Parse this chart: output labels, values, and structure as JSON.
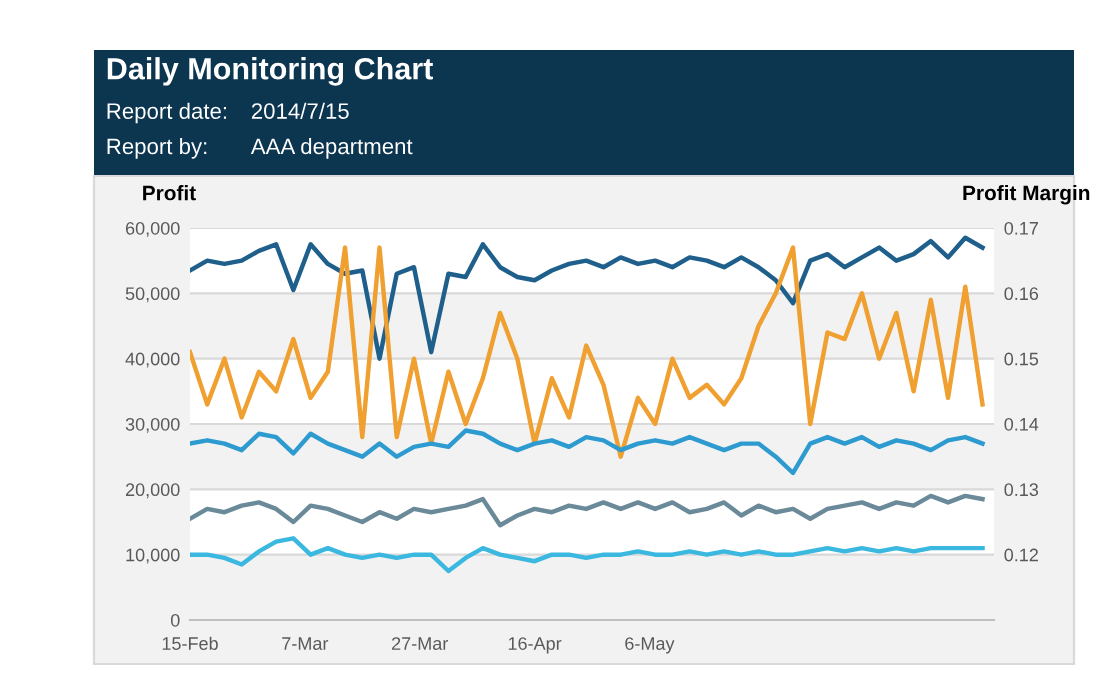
{
  "chart_data": {
    "type": "line",
    "title": "Daily Monitoring Chart",
    "annotations": [
      "Report date:",
      "2014/7/15",
      "Report by:",
      "AAA department"
    ],
    "ylabel": "Profit",
    "y2label": "Profit Margin",
    "x": [
      "2014-02-15",
      "2014-02-18",
      "2014-02-21",
      "2014-02-24",
      "2014-02-27",
      "2014-03-02",
      "2014-03-05",
      "2014-03-08",
      "2014-03-11",
      "2014-03-14",
      "2014-03-17",
      "2014-03-20",
      "2014-03-23",
      "2014-03-26",
      "2014-03-29",
      "2014-04-01",
      "2014-04-04",
      "2014-04-07",
      "2014-04-10",
      "2014-04-13",
      "2014-04-16",
      "2014-04-19",
      "2014-04-22",
      "2014-04-25",
      "2014-04-28",
      "2014-05-01",
      "2014-05-04",
      "2014-05-07",
      "2014-05-10",
      "2014-05-13",
      "2014-05-16",
      "2014-05-19",
      "2014-05-22",
      "2014-05-25",
      "2014-05-28",
      "2014-05-31",
      "2014-06-03",
      "2014-06-06",
      "2014-06-09",
      "2014-06-12",
      "2014-06-15",
      "2014-06-18",
      "2014-06-21",
      "2014-06-24",
      "2014-06-27",
      "2014-06-30",
      "2014-07-03"
    ],
    "series": [
      {
        "color": "#1f5f8b",
        "values": [
          53500,
          55000,
          54500,
          55000,
          56500,
          57500,
          50500,
          57500,
          54500,
          53000,
          53500,
          40000,
          53000,
          54000,
          41000,
          53000,
          52500,
          57500,
          54000,
          52500,
          52000,
          53500,
          54500,
          55000,
          54000,
          55500,
          54500,
          55000,
          54000,
          55500,
          55000,
          54000,
          55500,
          54000,
          52000,
          48500,
          55000,
          56000,
          54000,
          55500,
          57000,
          55000,
          56000,
          58000,
          55500,
          58500,
          57000
        ]
      },
      {
        "color": "#f0a030",
        "values": [
          41000,
          33000,
          40000,
          31000,
          38000,
          35000,
          43000,
          34000,
          38000,
          57000,
          28000,
          57000,
          28000,
          40000,
          27000,
          38000,
          30000,
          37000,
          47000,
          40000,
          27000,
          37000,
          31000,
          42000,
          36000,
          25000,
          34000,
          30000,
          40000,
          34000,
          36000,
          33000,
          37000,
          45000,
          50000,
          57000,
          30000,
          44000,
          43000,
          50000,
          40000,
          47000,
          35000,
          49000,
          34000,
          51000,
          33000
        ]
      },
      {
        "color": "#2e9bd0",
        "values": [
          27000,
          27500,
          27000,
          26000,
          28500,
          28000,
          25500,
          28500,
          27000,
          26000,
          25000,
          27000,
          25000,
          26500,
          27000,
          26500,
          29000,
          28500,
          27000,
          26000,
          27000,
          27500,
          26500,
          28000,
          27500,
          26000,
          27000,
          27500,
          27000,
          28000,
          27000,
          26000,
          27000,
          27000,
          25000,
          22500,
          27000,
          28000,
          27000,
          28000,
          26500,
          27500,
          27000,
          26000,
          27500,
          28000,
          27000
        ]
      },
      {
        "color": "#6a8a9a",
        "values": [
          15500,
          17000,
          16500,
          17500,
          18000,
          17000,
          15000,
          17500,
          17000,
          16000,
          15000,
          16500,
          15500,
          17000,
          16500,
          17000,
          17500,
          18500,
          14500,
          16000,
          17000,
          16500,
          17500,
          17000,
          18000,
          17000,
          18000,
          17000,
          18000,
          16500,
          17000,
          18000,
          16000,
          17500,
          16500,
          17000,
          15500,
          17000,
          17500,
          18000,
          17000,
          18000,
          17500,
          19000,
          18000,
          19000,
          18500
        ]
      },
      {
        "color": "#3bb8e0",
        "values": [
          10000,
          10000,
          9500,
          8500,
          10500,
          12000,
          12500,
          10000,
          11000,
          10000,
          9500,
          10000,
          9500,
          10000,
          10000,
          7500,
          9500,
          11000,
          10000,
          9500,
          9000,
          10000,
          10000,
          9500,
          10000,
          10000,
          10500,
          10000,
          10000,
          10500,
          10000,
          10500,
          10000,
          10500,
          10000,
          10000,
          10500,
          11000,
          10500,
          11000,
          10500,
          11000,
          10500,
          11000,
          11000,
          11000,
          11000
        ]
      }
    ],
    "xlim": [
      "2014-02-15",
      "2014-07-05"
    ],
    "xticks": [
      {
        "value": "2014-02-15",
        "label": "15-Feb"
      },
      {
        "value": "2014-03-07",
        "label": "7-Mar"
      },
      {
        "value": "2014-03-27",
        "label": "27-Mar"
      },
      {
        "value": "2014-04-16",
        "label": "16-Apr"
      },
      {
        "value": "2014-05-06",
        "label": "6-May"
      }
    ],
    "ylim": [
      0,
      60000
    ],
    "yticks": [
      0,
      {
        "value": 10000,
        "label": "10,000"
      },
      {
        "value": 20000,
        "label": "20,000"
      },
      {
        "value": 30000,
        "label": "30,000"
      },
      {
        "value": 40000,
        "label": "40,000"
      },
      {
        "value": 50000,
        "label": "50,000"
      },
      {
        "value": 60000,
        "label": "60,000"
      }
    ],
    "y2lim": [
      0.11,
      0.17
    ],
    "y2ticks": [
      0.12,
      0.13,
      0.14,
      0.15,
      0.16,
      0.17
    ],
    "bands": [
      {
        "axis": "y",
        "from": 10000,
        "to": 20000,
        "color": "#ffffff"
      },
      {
        "axis": "y",
        "from": 30000,
        "to": 40000,
        "color": "#ffffff"
      },
      {
        "axis": "y",
        "from": 50000,
        "to": 60000,
        "color": "#ffffff"
      }
    ],
    "grid": "y",
    "legend": false,
    "marker": "none",
    "line_style": "solid"
  }
}
